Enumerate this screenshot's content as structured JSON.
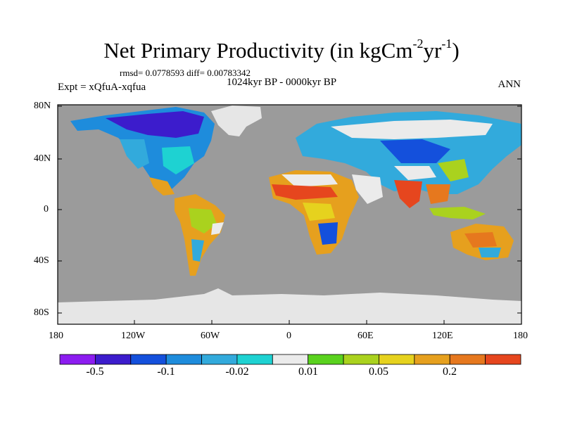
{
  "title": {
    "main": "Net Primary Productivity (in kgCm",
    "sup1": "-2",
    "mid": "yr",
    "sup2": "-1",
    "end": ")"
  },
  "stats": "rmsd= 0.0778593 diff= 0.00783342",
  "experiment": "Expt = xQfuA-xqfua",
  "period": "1024kyr BP - 0000kyr BP",
  "season": "ANN",
  "y_ticks": [
    "80N",
    "40N",
    "0",
    "40S",
    "80S"
  ],
  "x_ticks": [
    "180",
    "120W",
    "60W",
    "0",
    "60E",
    "120E",
    "180"
  ],
  "colorbar": {
    "colors": [
      "#8c1cf0",
      "#3c1ccc",
      "#1450dc",
      "#1e8cdc",
      "#32aadc",
      "#1ed2d2",
      "#ebebeb",
      "#5ad21e",
      "#aad21e",
      "#e6d21e",
      "#e6a01e",
      "#e6781e",
      "#e6461e"
    ],
    "labels": [
      "-0.5",
      "-0.1",
      "-0.02",
      "0.01",
      "0.05",
      "0.2"
    ]
  },
  "colors": {
    "ocean": "#9b9b9b",
    "ice": "#e6e6e6",
    "frame": "#000000"
  }
}
